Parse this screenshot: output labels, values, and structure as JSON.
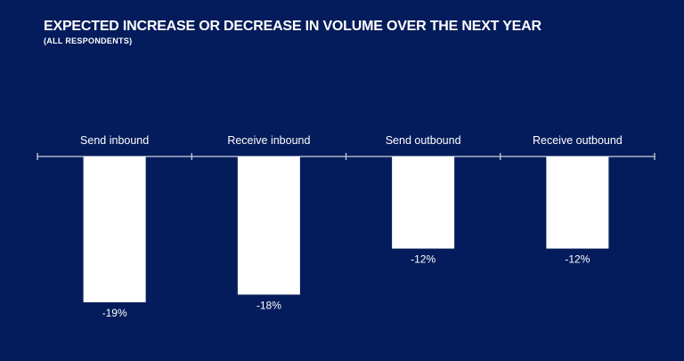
{
  "header": {
    "title": "EXPECTED INCREASE OR DECREASE IN VOLUME OVER THE NEXT YEAR",
    "subtitle": "(ALL RESPONDENTS)"
  },
  "colors": {
    "background": "#041c5b",
    "bar": "#ffffff",
    "text": "#ffffff",
    "axis": "#c8cfe0"
  },
  "chart_data": {
    "type": "bar",
    "title": "EXPECTED INCREASE OR DECREASE IN VOLUME OVER THE NEXT YEAR",
    "subtitle": "(ALL RESPONDENTS)",
    "categories": [
      "Send inbound",
      "Receive inbound",
      "Send outbound",
      "Receive outbound"
    ],
    "values": [
      -19,
      -18,
      -12,
      -12
    ],
    "value_labels": [
      "-19%",
      "-18%",
      "-12%",
      "-12%"
    ],
    "unit": "%",
    "ylim": [
      -20,
      0
    ],
    "grid": false,
    "legend": "none"
  }
}
